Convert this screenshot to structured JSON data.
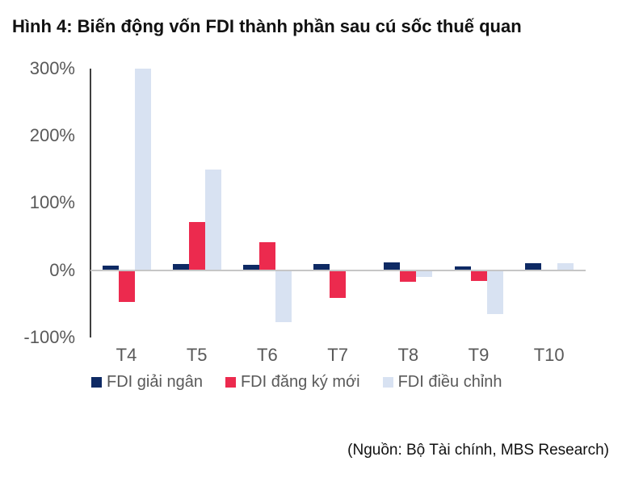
{
  "figure": {
    "title": "Hình 4: Biến động vốn FDI thành phần sau cú sốc thuế quan",
    "source": "(Nguồn: Bộ Tài chính, MBS Research)"
  },
  "colors": {
    "navy": "#0e2a64",
    "red": "#ec2a4e",
    "light_blue": "#d8e2f2",
    "axis_line": "#3f3f3f",
    "zero_line": "#c6c6c6",
    "tick_text": "#595959",
    "legend_text": "#595959",
    "title_text": "#111111",
    "source_text": "#111111"
  },
  "chart_data": {
    "type": "bar",
    "title": "Hình 4: Biến động vốn FDI thành phần sau cú sốc thuế quan",
    "categories": [
      "T4",
      "T5",
      "T6",
      "T7",
      "T8",
      "T9",
      "T10"
    ],
    "series": [
      {
        "name": "FDI giải ngân",
        "color": "#0e2a64",
        "values": [
          7,
          9,
          8,
          9,
          11,
          6,
          10
        ]
      },
      {
        "name": "FDI đăng ký mới",
        "color": "#ec2a4e",
        "values": [
          -47,
          72,
          41,
          -42,
          -18,
          -16,
          0
        ]
      },
      {
        "name": "FDI điều chỉnh",
        "color": "#d8e2f2",
        "values": [
          300,
          149,
          -78,
          0,
          -10,
          -66,
          10
        ]
      }
    ],
    "unit": "%",
    "xlabel": "",
    "ylabel": "",
    "ylim": [
      -100,
      300
    ],
    "yticks": [
      {
        "value": 300,
        "label": "300%"
      },
      {
        "value": 200,
        "label": "200%"
      },
      {
        "value": 100,
        "label": "100%"
      },
      {
        "value": 0,
        "label": "0%"
      },
      {
        "value": -100,
        "label": "-100%"
      }
    ],
    "grid": "zero-line-only",
    "legend_position": "bottom",
    "source": "(Nguồn: Bộ Tài chính, MBS Research)"
  }
}
